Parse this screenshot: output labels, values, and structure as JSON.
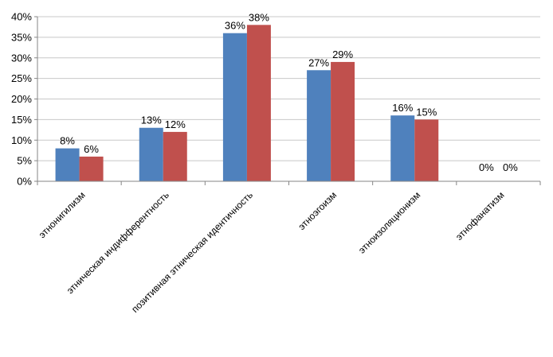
{
  "chart_data": {
    "type": "bar",
    "categories": [
      "этнонигилизм",
      "этническая индифферентность",
      "позитивная этническая идентичность",
      "этноэгоизм",
      "этноизоляционизм",
      "этнофанатизм"
    ],
    "series": [
      {
        "values": [
          8,
          13,
          36,
          27,
          16,
          0
        ],
        "labels": [
          "8%",
          "13%",
          "36%",
          "27%",
          "16%",
          "0%"
        ],
        "color": "#4f81bd"
      },
      {
        "values": [
          6,
          12,
          38,
          29,
          15,
          0
        ],
        "labels": [
          "6%",
          "12%",
          "38%",
          "29%",
          "15%",
          "0%"
        ],
        "color": "#c0504d"
      }
    ],
    "ylim": [
      0,
      40
    ],
    "yticks": [
      0,
      5,
      10,
      15,
      20,
      25,
      30,
      35,
      40
    ],
    "ytick_labels": [
      "0%",
      "5%",
      "10%",
      "15%",
      "20%",
      "25%",
      "30%",
      "35%",
      "40%"
    ],
    "grid": true,
    "legend": "none"
  }
}
